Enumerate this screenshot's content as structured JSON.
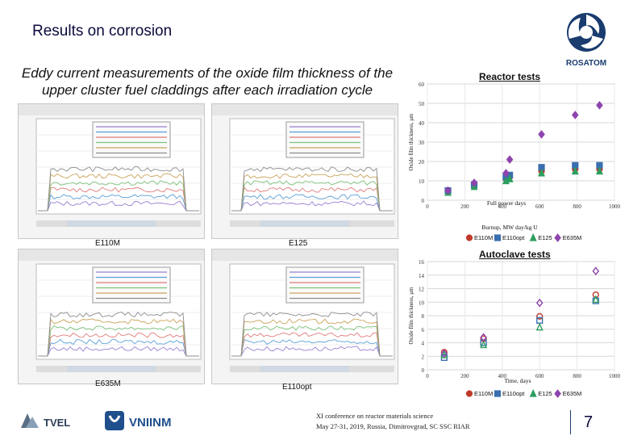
{
  "slide": {
    "title": "Results on corrosion",
    "subtitle": "Eddy current measurements of the oxide film thickness of the upper cluster fuel claddings after each irradiation cycle",
    "logo": {
      "name": "ROSATOM",
      "brand_color": "#1a3c6e"
    },
    "panels": [
      {
        "id": "e110m",
        "caption": "E110M"
      },
      {
        "id": "e125",
        "caption": "E125"
      },
      {
        "id": "e635m",
        "caption": "E635M"
      },
      {
        "id": "e110opt",
        "caption": "E110opt"
      }
    ],
    "footer": {
      "line1": "XI conference on reactor materials science",
      "line2": "May 27-31, 2019, Russia, Dimitrovgrad, SC SSC RIAR",
      "page_number": "7",
      "logos": [
        "TVEL",
        "VNIINM"
      ]
    }
  },
  "chart_data": [
    {
      "type": "scatter",
      "title": "Reactor tests",
      "xlabel": "Full power days",
      "ylabel": "Oxide film thickness, μm",
      "secondary_label": "Burnup, MW day/kg U",
      "xlim": [
        0,
        1000
      ],
      "ylim": [
        0,
        60
      ],
      "xticks": [
        0,
        200,
        400,
        600,
        800,
        1000
      ],
      "yticks": [
        0,
        10,
        20,
        30,
        40,
        50,
        60
      ],
      "grid": true,
      "legend_position": "top",
      "series": [
        {
          "name": "E110M",
          "marker": "circle",
          "color": "#c0392b",
          "x": [
            110,
            250,
            420,
            440,
            610,
            790,
            920
          ],
          "y": [
            5,
            7,
            11,
            12,
            15,
            16,
            16
          ]
        },
        {
          "name": "E110opt",
          "marker": "square",
          "color": "#3a6fb0",
          "x": [
            110,
            250,
            420,
            440,
            610,
            790,
            920
          ],
          "y": [
            5,
            8,
            12,
            13,
            17,
            18,
            18
          ]
        },
        {
          "name": "E125",
          "marker": "triangle",
          "color": "#2e9e5e",
          "x": [
            110,
            250,
            420,
            440,
            610,
            790,
            920
          ],
          "y": [
            4,
            7,
            10,
            11,
            14,
            15,
            15
          ]
        },
        {
          "name": "E635M",
          "marker": "diamond",
          "color": "#8e44ad",
          "x": [
            110,
            250,
            420,
            440,
            610,
            790,
            920
          ],
          "y": [
            5,
            9,
            14,
            21,
            34,
            44,
            49
          ]
        }
      ]
    },
    {
      "type": "scatter",
      "title": "Autoclave tests",
      "xlabel": "Time, days",
      "ylabel": "Oxide film thickness, μm",
      "xlim": [
        0,
        1000
      ],
      "ylim": [
        0,
        16
      ],
      "xticks": [
        0,
        200,
        400,
        600,
        800,
        1000
      ],
      "yticks": [
        0,
        2,
        4,
        6,
        8,
        10,
        12,
        14,
        16
      ],
      "grid": true,
      "legend_position": "bottom",
      "series": [
        {
          "name": "E110M",
          "marker": "circle",
          "color": "#c0392b",
          "x": [
            90,
            300,
            600,
            900
          ],
          "y": [
            2.6,
            4.6,
            7.9,
            11.1
          ]
        },
        {
          "name": "E110opt",
          "marker": "square",
          "color": "#3a6fb0",
          "x": [
            90,
            300,
            600,
            900
          ],
          "y": [
            1.8,
            4.0,
            7.3,
            10.2
          ]
        },
        {
          "name": "E125",
          "marker": "triangle",
          "color": "#2e9e5e",
          "x": [
            90,
            300,
            600,
            900
          ],
          "y": [
            2.2,
            3.7,
            6.3,
            10.4
          ]
        },
        {
          "name": "E635M",
          "marker": "diamond",
          "color": "#8e44ad",
          "x": [
            90,
            300,
            600,
            900
          ],
          "y": [
            2.4,
            4.8,
            9.9,
            14.6
          ]
        }
      ]
    }
  ]
}
